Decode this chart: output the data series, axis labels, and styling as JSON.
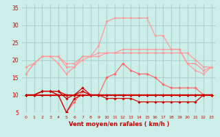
{
  "x": [
    0,
    1,
    2,
    3,
    4,
    5,
    6,
    7,
    8,
    9,
    10,
    11,
    12,
    13,
    14,
    15,
    16,
    17,
    18,
    19,
    20,
    21,
    22,
    23
  ],
  "line_peak": [
    16,
    19,
    21,
    21,
    21,
    18,
    18,
    21,
    21,
    24,
    31,
    32,
    32,
    32,
    32,
    32,
    27,
    27,
    23,
    23,
    19,
    17,
    16,
    18
  ],
  "line_upper1": [
    16,
    19,
    21,
    21,
    21,
    19,
    19,
    21,
    21,
    22,
    22,
    22,
    23,
    23,
    23,
    23,
    23,
    23,
    23,
    23,
    19,
    19,
    17,
    18
  ],
  "line_upper2": [
    18,
    19,
    21,
    21,
    19,
    16,
    18,
    20,
    21,
    21,
    22,
    22,
    22,
    22,
    22,
    22,
    22,
    22,
    22,
    22,
    22,
    20,
    18,
    18
  ],
  "line_mid": [
    10,
    10,
    11,
    11,
    10,
    5,
    8,
    11,
    10,
    10,
    15,
    16,
    19,
    17,
    16,
    16,
    15,
    13,
    12,
    12,
    12,
    12,
    10,
    10
  ],
  "line_flat1": [
    10,
    10,
    11,
    11,
    11,
    10,
    10,
    12,
    10,
    10,
    10,
    10,
    10,
    10,
    10,
    10,
    10,
    10,
    10,
    10,
    10,
    10,
    10,
    10
  ],
  "line_flat2": [
    10,
    10,
    11,
    11,
    11,
    9,
    10,
    11,
    10,
    10,
    10,
    10,
    10,
    10,
    10,
    10,
    10,
    10,
    10,
    10,
    10,
    10,
    10,
    10
  ],
  "line_decrease": [
    10,
    10,
    11,
    11,
    10,
    5,
    9,
    10,
    10,
    10,
    9,
    9,
    9,
    9,
    8,
    8,
    8,
    8,
    8,
    8,
    8,
    8,
    10,
    10
  ],
  "line_flat3": [
    10,
    10,
    10,
    10,
    10,
    10,
    10,
    10,
    10,
    10,
    10,
    10,
    10,
    10,
    10,
    10,
    10,
    10,
    10,
    10,
    10,
    10,
    10,
    10
  ],
  "bg_color": "#cceee8",
  "grid_color": "#aad4cc",
  "color_dark": "#cc0000",
  "color_light": "#ff9999",
  "color_med": "#ff6666",
  "xlabel": "Vent moyen/en rafales ( km/h )",
  "ylim": [
    5,
    36
  ],
  "xlim": [
    -0.5,
    23.5
  ],
  "yticks": [
    5,
    10,
    15,
    20,
    25,
    30,
    35
  ],
  "xticks": [
    0,
    1,
    2,
    3,
    4,
    5,
    6,
    7,
    8,
    9,
    10,
    11,
    12,
    13,
    14,
    15,
    16,
    17,
    18,
    19,
    20,
    21,
    22,
    23
  ]
}
